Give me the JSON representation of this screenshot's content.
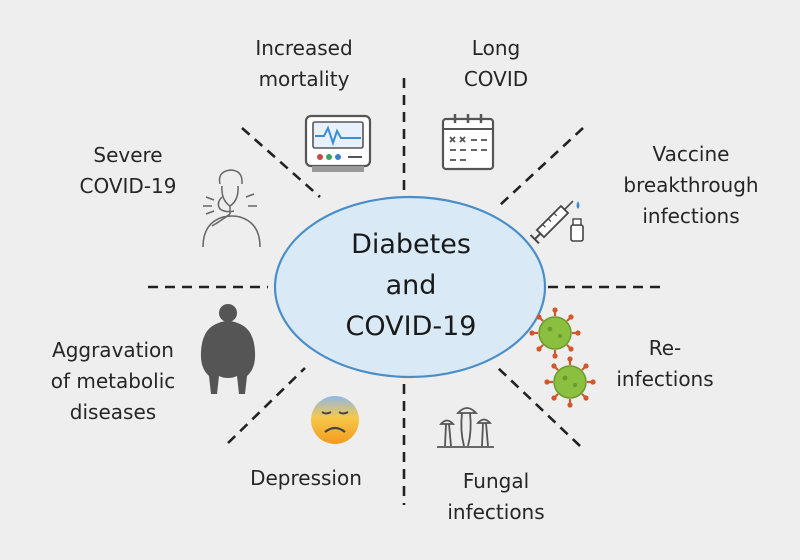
{
  "center": {
    "text": "Diabetes\nand\nCOVID-19"
  },
  "outcomes": [
    {
      "id": "increased-mortality",
      "label": "Increased\nmortality",
      "icon": "heart-monitor-icon"
    },
    {
      "id": "long-covid",
      "label": "Long\nCOVID",
      "icon": "calendar-icon"
    },
    {
      "id": "vaccine-breakthrough",
      "label": "Vaccine\nbreakthrough\ninfections",
      "icon": "syringe-icon"
    },
    {
      "id": "reinfections",
      "label": "Re-\ninfections",
      "icon": "virus-icon"
    },
    {
      "id": "fungal-infections",
      "label": "Fungal\ninfections",
      "icon": "mushroom-icon"
    },
    {
      "id": "depression",
      "label": "Depression",
      "icon": "sad-face-icon"
    },
    {
      "id": "metabolic-diseases",
      "label": "Aggravation\nof metabolic\ndiseases",
      "icon": "obese-person-icon"
    },
    {
      "id": "severe-covid",
      "label": "Severe\nCOVID-19",
      "icon": "coughing-person-icon"
    }
  ],
  "colors": {
    "background": "#eeeeee",
    "ellipse_fill": "#d9eaf6",
    "ellipse_stroke": "#4a8ec9",
    "divider": "#222222",
    "virus_body": "#8bbf3f",
    "virus_spikes": "#d2572b"
  }
}
